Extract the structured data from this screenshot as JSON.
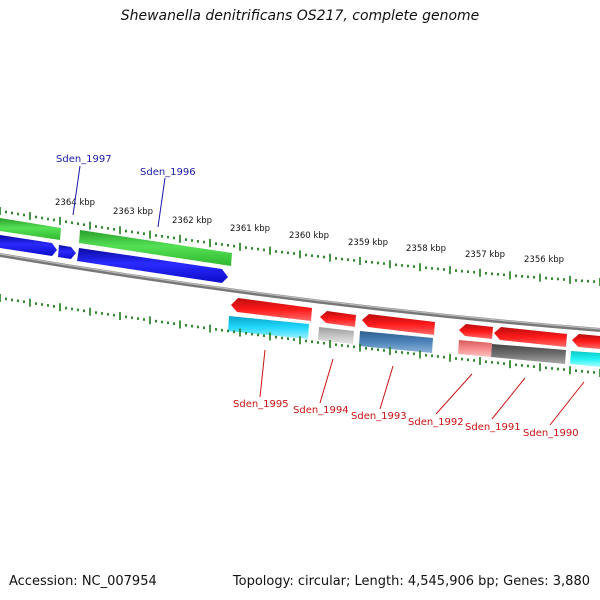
{
  "title": "Shewanella denitrificans OS217, complete genome",
  "accession_text": "Accession: NC_007954",
  "summary_text": "Topology: circular; Length: 4,545,906 bp; Genes: 3,880",
  "scale_labels": [
    "2364 kbp",
    "2363 kbp",
    "2362 kbp",
    "2361 kbp",
    "2360 kbp",
    "2359 kbp",
    "2358 kbp",
    "2357 kbp",
    "2356 kbp"
  ],
  "gene_labels": {
    "Sden_1997": "Sden_1997",
    "Sden_1996": "Sden_1996",
    "Sden_1995": "Sden_1995",
    "Sden_1994": "Sden_1994",
    "Sden_1993": "Sden_1993",
    "Sden_1992": "Sden_1992",
    "Sden_1991": "Sden_1991",
    "Sden_1990": "Sden_1990"
  },
  "colors": {
    "backbone": "#8a8a8a",
    "tick": "#1a7a1a",
    "top_label": "#1a1aaa",
    "bottom_label": "#cc1111",
    "green": "#33cc33",
    "blue": "#1111dd",
    "red": "#ee1111",
    "cyan": "#11ccee",
    "lightgray": "#b8b8b8",
    "steelblue": "#4477aa",
    "pink": "#ee7777",
    "darkgray": "#666666",
    "aqua": "#11eeee"
  }
}
